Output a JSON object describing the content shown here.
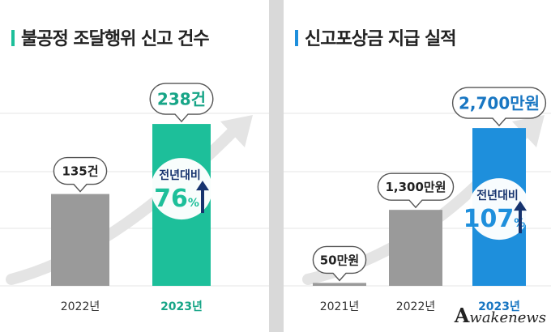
{
  "colors": {
    "gray_bar": "#9a9a9a",
    "green": "#1dbf9a",
    "green_dark": "#17a587",
    "blue": "#1e8fdc",
    "blue_dark": "#1876c2",
    "navy": "#16336e",
    "title_text": "#222222"
  },
  "chart_data": [
    {
      "type": "bar",
      "title": "불공정 조달행위 신고 건수",
      "categories": [
        "2022년",
        "2023년"
      ],
      "values": [
        135,
        238
      ],
      "data_labels": [
        "135건",
        "238건"
      ],
      "growth_label": "전년대비",
      "growth_value": "76",
      "growth_unit": "%",
      "ylim": [
        0,
        250
      ]
    },
    {
      "type": "bar",
      "title": "신고포상금 지급 실적",
      "categories": [
        "2021년",
        "2022년",
        "2023년"
      ],
      "values": [
        50,
        1300,
        2700
      ],
      "data_labels": [
        "50만원",
        "1,300만원",
        "2,700만원"
      ],
      "growth_label": "전년대비",
      "growth_value": "107",
      "growth_unit": "%",
      "ylim": [
        0,
        2840
      ]
    }
  ],
  "watermark": {
    "letter": "A",
    "text": "wakenews"
  }
}
